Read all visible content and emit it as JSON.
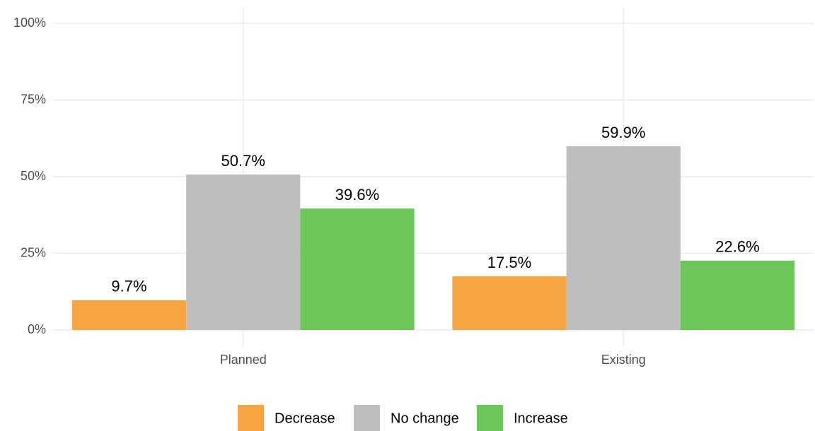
{
  "chart_data": {
    "type": "bar",
    "categories": [
      "Planned",
      "Existing"
    ],
    "series": [
      {
        "name": "Decrease",
        "color": "#f7a443",
        "values": [
          9.7,
          17.5
        ],
        "value_labels": [
          "9.7%",
          "17.5%"
        ]
      },
      {
        "name": "No change",
        "color": "#bebebe",
        "values": [
          50.7,
          59.9
        ],
        "value_labels": [
          "50.7%",
          "59.9%"
        ]
      },
      {
        "name": "Increase",
        "color": "#6cc65a",
        "values": [
          39.6,
          22.6
        ],
        "value_labels": [
          "39.6%",
          "22.6%"
        ]
      }
    ],
    "ylim": [
      0,
      100
    ],
    "yticks": [
      {
        "value": 0,
        "label": "0%"
      },
      {
        "value": 25,
        "label": "25%"
      },
      {
        "value": 50,
        "label": "50%"
      },
      {
        "value": 75,
        "label": "75%"
      },
      {
        "value": 100,
        "label": "100%"
      }
    ],
    "grid": true,
    "legend": "bottom"
  }
}
